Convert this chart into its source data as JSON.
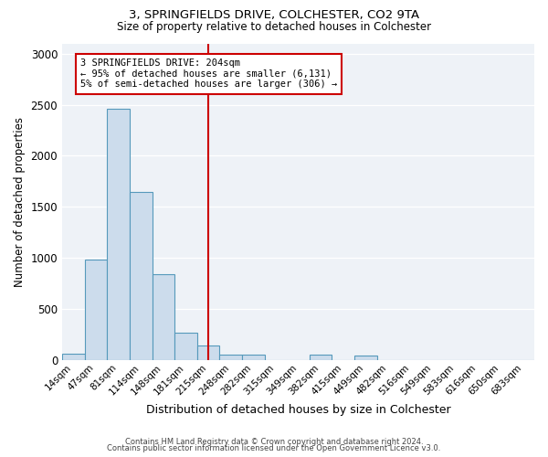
{
  "title1": "3, SPRINGFIELDS DRIVE, COLCHESTER, CO2 9TA",
  "title2": "Size of property relative to detached houses in Colchester",
  "xlabel": "Distribution of detached houses by size in Colchester",
  "ylabel": "Number of detached properties",
  "bar_color": "#ccdcec",
  "bar_edge_color": "#5599bb",
  "bin_labels": [
    "14sqm",
    "47sqm",
    "81sqm",
    "114sqm",
    "148sqm",
    "181sqm",
    "215sqm",
    "248sqm",
    "282sqm",
    "315sqm",
    "349sqm",
    "382sqm",
    "415sqm",
    "449sqm",
    "482sqm",
    "516sqm",
    "549sqm",
    "583sqm",
    "616sqm",
    "650sqm",
    "683sqm"
  ],
  "bar_heights": [
    65,
    985,
    2460,
    1650,
    840,
    265,
    140,
    50,
    50,
    0,
    0,
    50,
    0,
    45,
    0,
    0,
    0,
    0,
    0,
    0,
    0
  ],
  "vline_x_index": 6.0,
  "vline_color": "#cc0000",
  "annotation_text": "3 SPRINGFIELDS DRIVE: 204sqm\n← 95% of detached houses are smaller (6,131)\n5% of semi-detached houses are larger (306) →",
  "annotation_box_color": "#ffffff",
  "annotation_box_edge": "#cc0000",
  "ylim": [
    0,
    3100
  ],
  "yticks": [
    0,
    500,
    1000,
    1500,
    2000,
    2500,
    3000
  ],
  "footer1": "Contains HM Land Registry data © Crown copyright and database right 2024.",
  "footer2": "Contains public sector information licensed under the Open Government Licence v3.0.",
  "bg_color": "#eef2f7"
}
